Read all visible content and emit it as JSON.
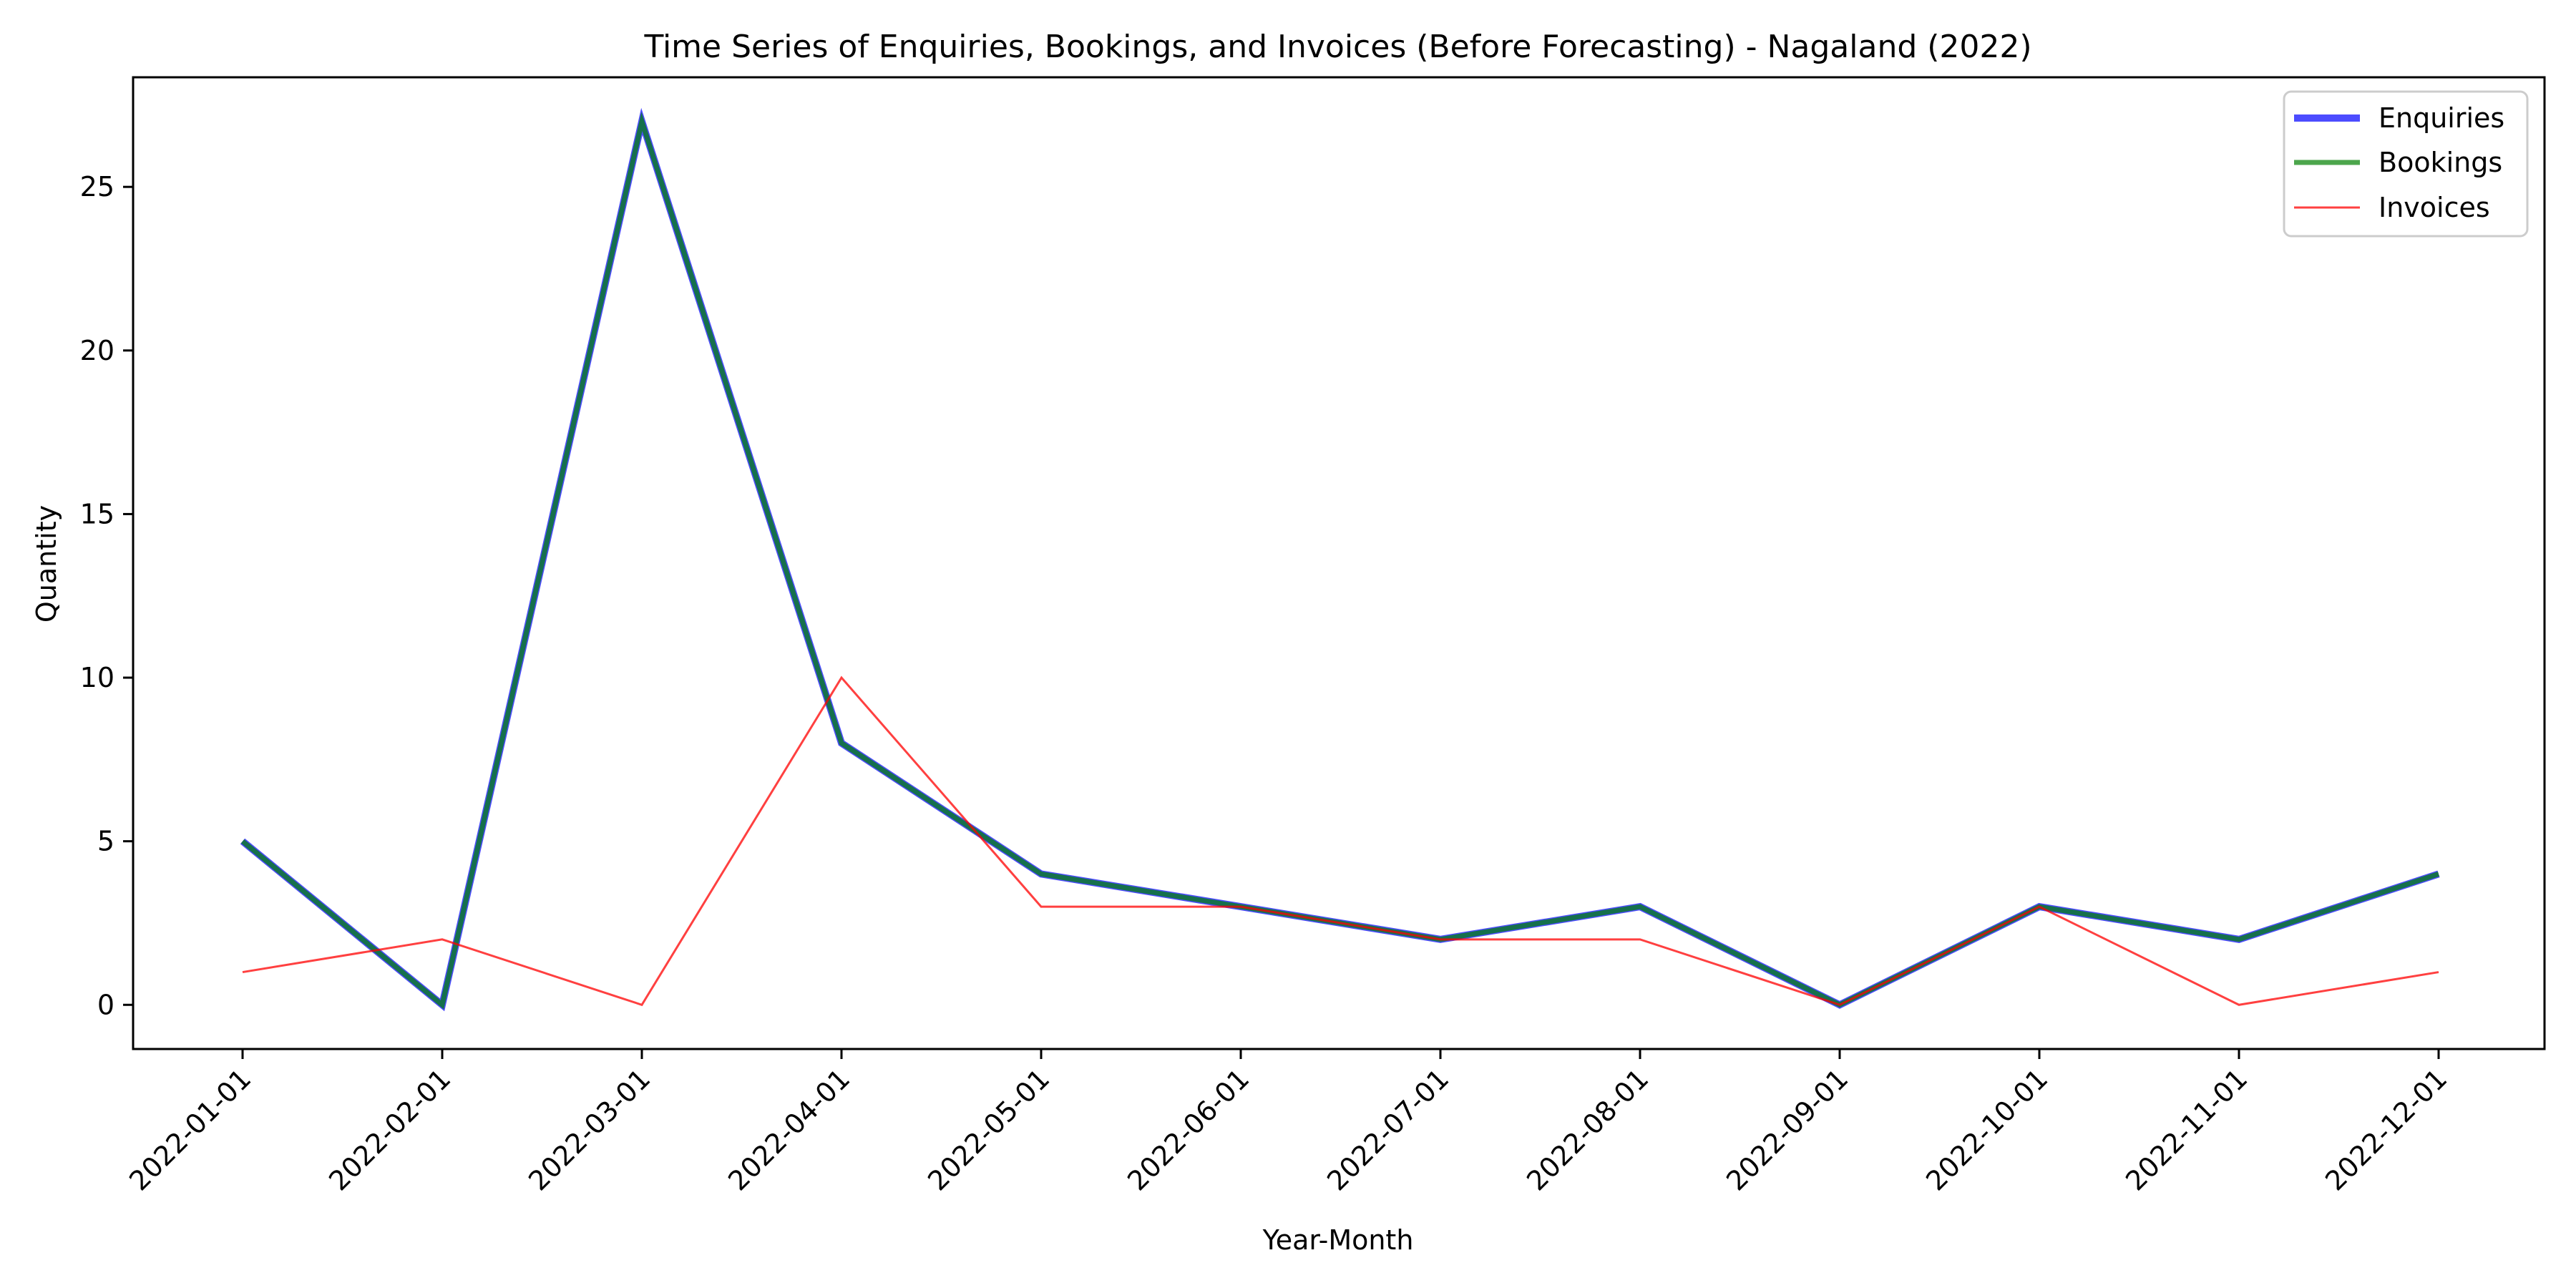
{
  "chart_data": {
    "type": "line",
    "title": "Time Series of Enquiries, Bookings, and Invoices (Before Forecasting) - Nagaland (2022)",
    "xlabel": "Year-Month",
    "ylabel": "Quantity",
    "x": [
      "2022-01-01",
      "2022-02-01",
      "2022-03-01",
      "2022-04-01",
      "2022-05-01",
      "2022-06-01",
      "2022-07-01",
      "2022-08-01",
      "2022-09-01",
      "2022-10-01",
      "2022-11-01",
      "2022-12-01"
    ],
    "ylim": [
      -1.35,
      28.35
    ],
    "yticks": [
      0,
      5,
      10,
      15,
      20,
      25
    ],
    "grid": false,
    "legend_position": "top-right",
    "series": [
      {
        "name": "Enquiries",
        "color": "#0000ff",
        "opacity": 0.7,
        "values": [
          5,
          0,
          27,
          8,
          4,
          3,
          2,
          3,
          0,
          3,
          2,
          4
        ]
      },
      {
        "name": "Bookings",
        "color": "#008000",
        "opacity": 0.7,
        "values": [
          5,
          0,
          27,
          8,
          4,
          3,
          2,
          3,
          0,
          3,
          2,
          4
        ]
      },
      {
        "name": "Invoices",
        "color": "#ff0000",
        "opacity": 0.75,
        "values": [
          1,
          2,
          0,
          10,
          3,
          3,
          2,
          2,
          0,
          3,
          0,
          1
        ]
      }
    ]
  }
}
